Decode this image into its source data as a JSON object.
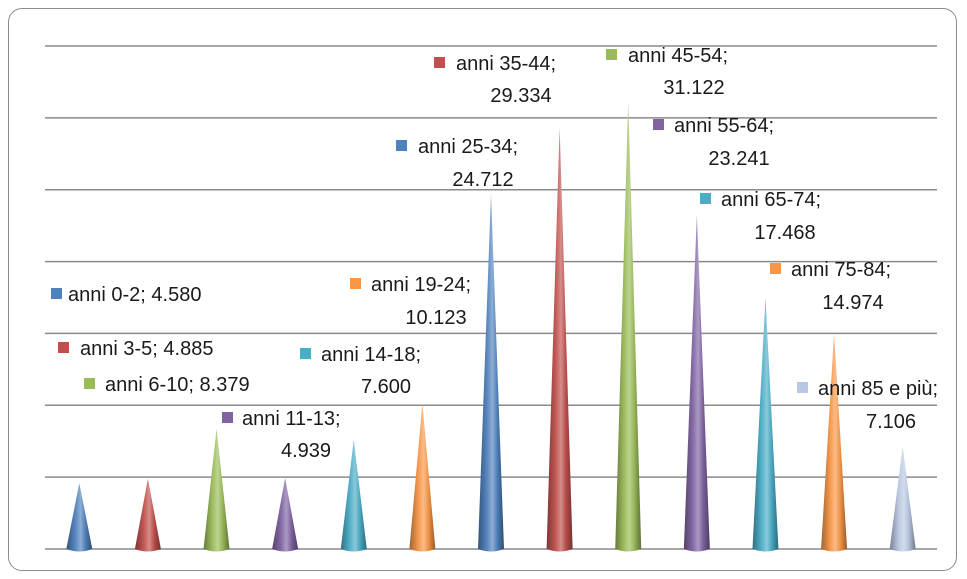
{
  "chart_data": {
    "type": "bar",
    "categories": [
      "anni 0-2",
      "anni  3-5",
      "anni 6-10",
      "anni  11-13",
      "anni 14-18",
      "anni  19-24",
      "anni 25-34",
      "anni  35-44",
      "anni  45-54",
      "anni  55-64",
      "anni 65-74",
      "anni 75-84",
      "anni 85 e più"
    ],
    "values": [
      4580,
      4885,
      8379,
      4939,
      7600,
      10123,
      24712,
      29334,
      31122,
      23241,
      17468,
      14974,
      7106
    ],
    "data_labels": [
      [
        "anni 0-2; 4.580"
      ],
      [
        "anni  3-5; 4.885"
      ],
      [
        "anni 6-10; 8.379"
      ],
      [
        "anni  11-13;",
        "4.939"
      ],
      [
        "anni 14-18;",
        "7.600"
      ],
      [
        "anni  19-24;",
        "10.123"
      ],
      [
        "anni 25-34;",
        "24.712"
      ],
      [
        "anni  35-44;",
        "29.334"
      ],
      [
        "anni  45-54;",
        "31.122"
      ],
      [
        "anni  55-64;",
        "23.241"
      ],
      [
        "anni 65-74;",
        "17.468"
      ],
      [
        "anni 75-84;",
        "14.974"
      ],
      [
        "anni 85 e più;",
        "7.106"
      ]
    ],
    "colors": [
      "#4f81bd",
      "#c0504d",
      "#9bbb59",
      "#8064a2",
      "#4bacc6",
      "#f79646",
      "#4f81bd",
      "#c0504d",
      "#9bbb59",
      "#8064a2",
      "#4bacc6",
      "#f79646",
      "#b9c7e2"
    ],
    "ylim": [
      0,
      35000
    ],
    "gridline_step": 5000,
    "grid": true,
    "bar_shape": "cone",
    "title": "",
    "xlabel": "",
    "ylabel": ""
  }
}
